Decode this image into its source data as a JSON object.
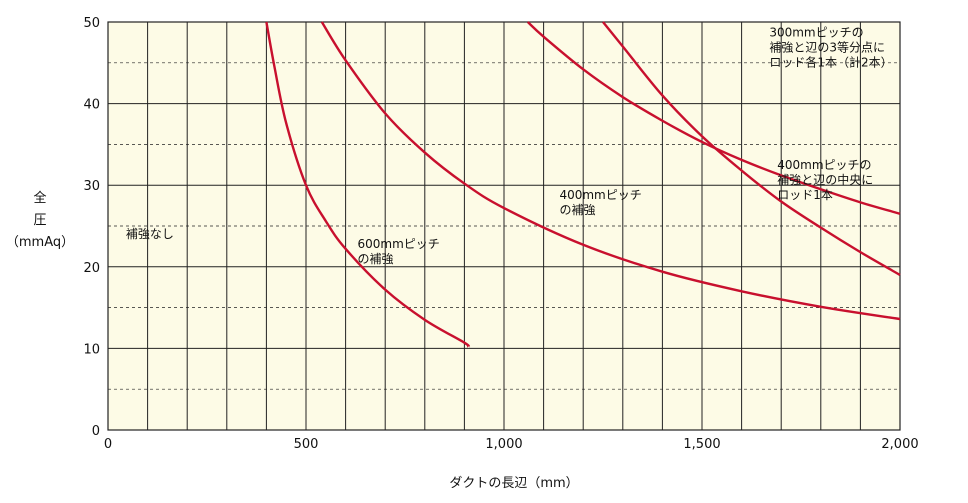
{
  "chart_data": {
    "type": "line",
    "xlabel": "ダクトの長辺（mm）",
    "ylabel_lines": [
      "全",
      "圧",
      "（mmAq）"
    ],
    "xlim": [
      0,
      2000
    ],
    "ylim": [
      0,
      50
    ],
    "x_ticks": [
      {
        "value": 0,
        "label": "0"
      },
      {
        "value": 500,
        "label": "500"
      },
      {
        "value": 1000,
        "label": "1,000"
      },
      {
        "value": 1500,
        "label": "1,500"
      },
      {
        "value": 2000,
        "label": "2,000"
      }
    ],
    "y_ticks": [
      {
        "value": 0,
        "label": "0"
      },
      {
        "value": 10,
        "label": "10"
      },
      {
        "value": 20,
        "label": "20"
      },
      {
        "value": 30,
        "label": "30"
      },
      {
        "value": 40,
        "label": "40"
      },
      {
        "value": 50,
        "label": "50"
      }
    ],
    "x_grid_step": 100,
    "y_grid_step": 5,
    "colors": {
      "background": "#fdfbe6",
      "curve": "#c8102e",
      "grid": "#222222"
    },
    "series": [
      {
        "id": "600",
        "x": [
          400,
          420,
          450,
          500,
          550,
          600,
          700,
          800,
          900,
          910
        ],
        "y": [
          50,
          44.6,
          37.6,
          30,
          25.6,
          22.2,
          17.2,
          13.5,
          10.7,
          10.2
        ]
      },
      {
        "id": "400",
        "x": [
          540,
          600,
          700,
          800,
          900,
          1000,
          1200,
          1400,
          1600,
          1800,
          2000
        ],
        "y": [
          50,
          45.3,
          38.8,
          34.0,
          30.2,
          27.2,
          22.7,
          19.4,
          17.0,
          15.1,
          13.6
        ]
      },
      {
        "id": "400rod",
        "x": [
          1060,
          1100,
          1200,
          1300,
          1400,
          1500,
          1600,
          1700,
          1800,
          1900,
          2000
        ],
        "y": [
          50,
          48.2,
          44.2,
          40.8,
          37.9,
          35.3,
          33.1,
          31.2,
          29.5,
          27.9,
          26.5
        ]
      },
      {
        "id": "300rod",
        "x": [
          1250,
          1300,
          1400,
          1500,
          1600,
          1700,
          1800,
          1900,
          2000
        ],
        "y": [
          50,
          47.0,
          41.0,
          36.0,
          31.8,
          28.0,
          24.8,
          21.8,
          19.0
        ]
      }
    ],
    "annotations": [
      {
        "id": "none",
        "lines": [
          "補強なし"
        ],
        "x": 45,
        "y": 23.5
      },
      {
        "id": "600",
        "lines": [
          "600mmピッチ",
          "の補強"
        ],
        "x": 630,
        "y": 22.3
      },
      {
        "id": "400",
        "lines": [
          "400mmピッチ",
          "の補強"
        ],
        "x": 1140,
        "y": 28.3
      },
      {
        "id": "400rod",
        "lines": [
          "400mmピッチの",
          "補強と辺の中央に",
          "ロッド1本"
        ],
        "x": 1690,
        "y": 32.0
      },
      {
        "id": "300rod",
        "lines": [
          "300mmピッチの",
          "補強と辺の3等分点に",
          "ロッド各1本（計2本）"
        ],
        "x": 1670,
        "y": 48.2
      }
    ]
  }
}
